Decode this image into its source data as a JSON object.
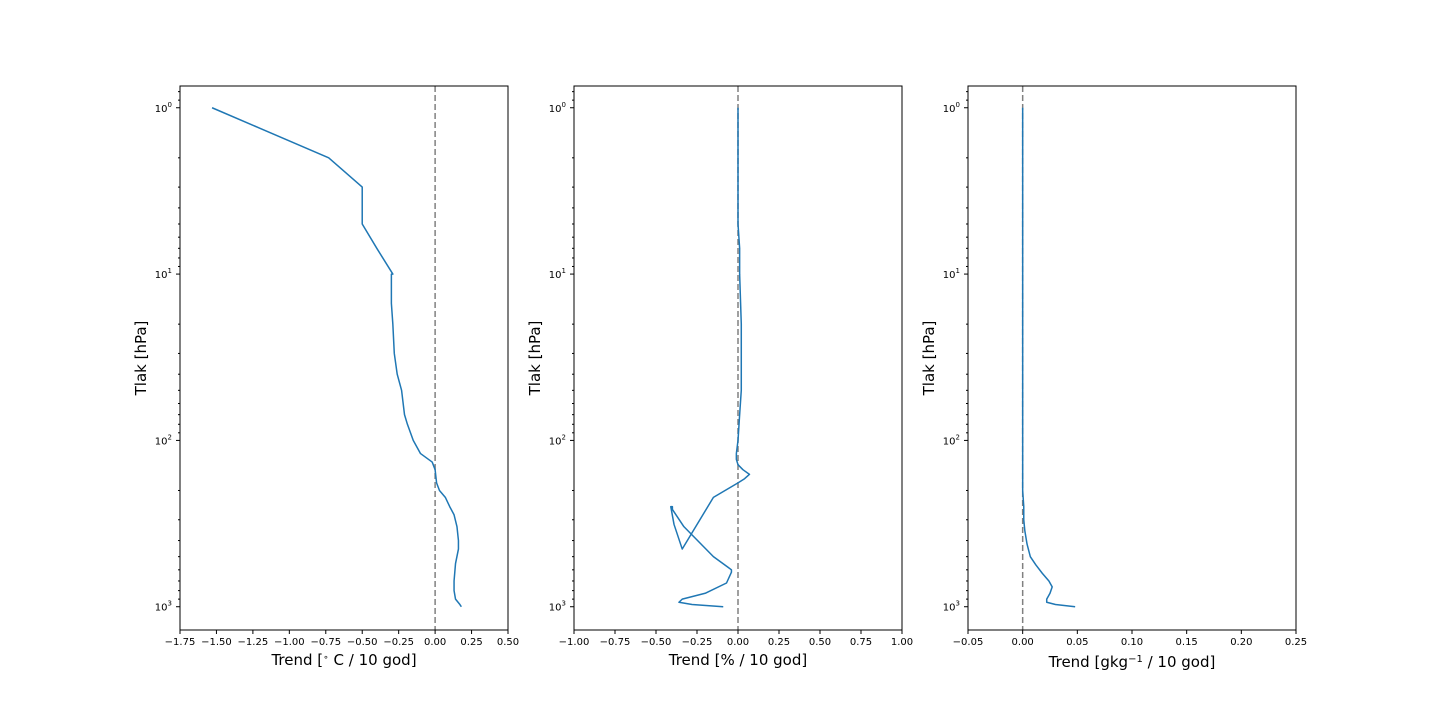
{
  "chart_data": [
    {
      "type": "line",
      "xlabel_parts": [
        "Trend [",
        "∘",
        " C / 10 god]"
      ],
      "ylabel": "Tlak [hPa]",
      "xlim": [
        -1.75,
        0.5
      ],
      "x_ticks": [
        -1.75,
        -1.5,
        -1.25,
        -1.0,
        -0.75,
        -0.5,
        -0.25,
        0.0,
        0.25,
        0.5
      ],
      "x_tick_labels": [
        "−1.75",
        "−1.50",
        "−1.25",
        "−1.00",
        "−0.75",
        "−0.50",
        "−0.25",
        "0.00",
        "0.25",
        "0.50"
      ],
      "y_scale": "log",
      "y_inverted": true,
      "ylim": [
        0.74,
        1380
      ],
      "y_tick_mantissa": "10",
      "y_tick_exponents": [
        "0",
        "1",
        "2",
        "3"
      ],
      "y_ticks": [
        1,
        10,
        100,
        1000
      ],
      "zero_line_x": 0.0,
      "series": [
        {
          "x": [
            0.18,
            0.17,
            0.14,
            0.13,
            0.13,
            0.14,
            0.16,
            0.16,
            0.15,
            0.13,
            0.1,
            0.07,
            0.03,
            0.01,
            0.0,
            -0.02,
            -0.1,
            -0.15,
            -0.19,
            -0.21,
            -0.23,
            -0.26,
            -0.28,
            -0.29,
            -0.3,
            -0.3,
            -0.29,
            -0.4,
            -0.5,
            -0.5,
            -0.5,
            -0.73,
            -1.53
          ],
          "y": [
            1000,
            970,
            900,
            800,
            700,
            550,
            450,
            400,
            330,
            280,
            250,
            220,
            200,
            180,
            150,
            135,
            120,
            100,
            80,
            70,
            50,
            40,
            30,
            20,
            15,
            10,
            10,
            7,
            5,
            4,
            3,
            2,
            1
          ]
        }
      ]
    },
    {
      "type": "line",
      "xlabel": "Trend [% / 10 god]",
      "ylabel": "Tlak [hPa]",
      "xlim": [
        -1.0,
        1.0
      ],
      "x_ticks": [
        -1.0,
        -0.75,
        -0.5,
        -0.25,
        0.0,
        0.25,
        0.5,
        0.75,
        1.0
      ],
      "x_tick_labels": [
        "−1.00",
        "−0.75",
        "−0.50",
        "−0.25",
        "0.00",
        "0.25",
        "0.50",
        "0.75",
        "1.00"
      ],
      "y_scale": "log",
      "y_inverted": true,
      "ylim": [
        0.74,
        1380
      ],
      "y_tick_mantissa": "10",
      "y_tick_exponents": [
        "0",
        "1",
        "2",
        "3"
      ],
      "y_ticks": [
        1,
        10,
        100,
        1000
      ],
      "zero_line_x": 0.0,
      "series": [
        {
          "x": [
            -0.09,
            -0.28,
            -0.36,
            -0.34,
            -0.2,
            -0.07,
            -0.04,
            -0.04,
            -0.06,
            -0.15,
            -0.33,
            -0.4,
            -0.4,
            -0.41,
            -0.39,
            -0.34,
            -0.15,
            0.0,
            0.04,
            0.07,
            0.03,
            0.0,
            -0.01,
            -0.01,
            0.0,
            0.01,
            0.02,
            0.02,
            0.02,
            0.01,
            0.01,
            0.0,
            0.0,
            0.0,
            0.0
          ],
          "y": [
            1000,
            970,
            940,
            900,
            830,
            720,
            620,
            600,
            580,
            500,
            330,
            260,
            250,
            250,
            320,
            450,
            220,
            180,
            170,
            160,
            150,
            140,
            130,
            120,
            100,
            70,
            50,
            30,
            20,
            10,
            7,
            5,
            3,
            2,
            1
          ]
        }
      ]
    },
    {
      "type": "line",
      "xlabel_parts": [
        "Trend [gkg",
        "−1",
        " / 10 god]"
      ],
      "ylabel": "Tlak [hPa]",
      "xlim": [
        -0.05,
        0.25
      ],
      "x_ticks": [
        -0.05,
        0.0,
        0.05,
        0.1,
        0.15,
        0.2,
        0.25
      ],
      "x_tick_labels": [
        "−0.05",
        "0.00",
        "0.05",
        "0.10",
        "0.15",
        "0.20",
        "0.25"
      ],
      "y_scale": "log",
      "y_inverted": true,
      "ylim": [
        0.74,
        1380
      ],
      "y_tick_mantissa": "10",
      "y_tick_exponents": [
        "0",
        "1",
        "2",
        "3"
      ],
      "y_ticks": [
        1,
        10,
        100,
        1000
      ],
      "zero_line_x": 0.0,
      "series": [
        {
          "x": [
            0.048,
            0.03,
            0.022,
            0.022,
            0.025,
            0.027,
            0.024,
            0.018,
            0.012,
            0.007,
            0.004,
            0.002,
            0.001,
            0.001,
            0.0,
            0.0,
            0.0,
            0.0,
            0.0
          ],
          "y": [
            1000,
            970,
            940,
            900,
            830,
            760,
            700,
            630,
            560,
            500,
            420,
            350,
            300,
            250,
            200,
            100,
            30,
            10,
            1
          ]
        }
      ]
    }
  ]
}
